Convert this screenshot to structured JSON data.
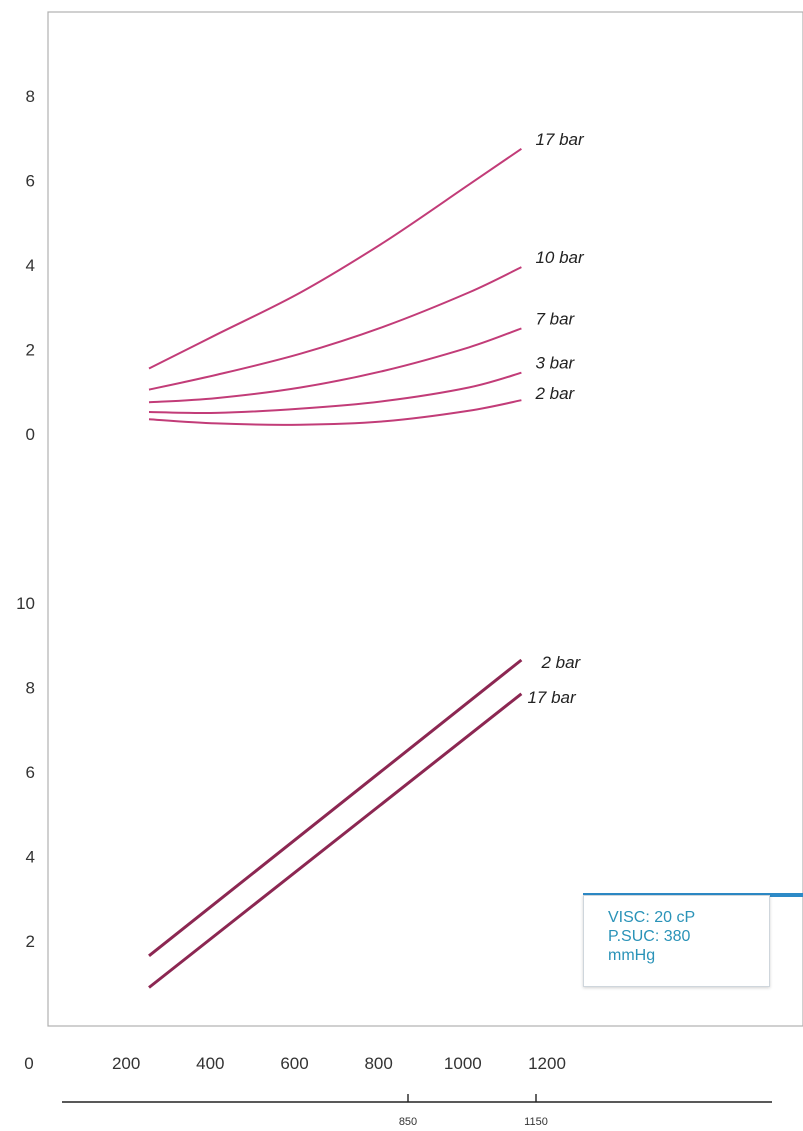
{
  "chart_data": [
    {
      "type": "line",
      "title": "",
      "xlabel": "",
      "ylabel": "",
      "xlim": [
        0,
        1350
      ],
      "ylim": [
        0,
        9
      ],
      "ytick_labels": [
        "0",
        "2",
        "4",
        "6",
        "8"
      ],
      "ytick_values": [
        0,
        2,
        4,
        6,
        8
      ],
      "grid": true,
      "series": [
        {
          "name": "17 bar",
          "color": "#c23c78",
          "x": [
            240,
            400,
            600,
            800,
            1000,
            1125
          ],
          "y": [
            1.55,
            2.35,
            3.35,
            4.55,
            5.9,
            6.75
          ]
        },
        {
          "name": "10 bar",
          "color": "#c23c78",
          "x": [
            240,
            400,
            600,
            800,
            1000,
            1125
          ],
          "y": [
            1.05,
            1.4,
            1.9,
            2.55,
            3.35,
            3.95
          ]
        },
        {
          "name": "7 bar",
          "color": "#c23c78",
          "x": [
            240,
            400,
            600,
            800,
            1000,
            1125
          ],
          "y": [
            0.75,
            0.85,
            1.1,
            1.5,
            2.05,
            2.5
          ]
        },
        {
          "name": "3 bar",
          "color": "#c23c78",
          "x": [
            240,
            400,
            600,
            800,
            1000,
            1125
          ],
          "y": [
            0.52,
            0.5,
            0.6,
            0.78,
            1.1,
            1.45
          ]
        },
        {
          "name": "2 bar",
          "color": "#c23c78",
          "x": [
            240,
            400,
            600,
            800,
            1000,
            1125
          ],
          "y": [
            0.35,
            0.25,
            0.22,
            0.3,
            0.55,
            0.8
          ]
        }
      ]
    },
    {
      "type": "line",
      "title": "",
      "xlabel": "",
      "ylabel": "",
      "xlim": [
        0,
        1350
      ],
      "ylim": [
        0,
        10
      ],
      "xtick_labels": [
        "0",
        "200",
        "400",
        "600",
        "800",
        "1000",
        "1200"
      ],
      "xtick_values": [
        0,
        200,
        400,
        600,
        800,
        1000,
        1200
      ],
      "ytick_labels": [
        "2",
        "4",
        "6",
        "8",
        "10"
      ],
      "ytick_values": [
        2,
        4,
        6,
        8,
        10
      ],
      "grid": true,
      "series": [
        {
          "name": "2 bar",
          "color": "#8c2752",
          "x": [
            240,
            1125
          ],
          "y": [
            1.65,
            8.65
          ]
        },
        {
          "name": "17 bar",
          "color": "#8c2752",
          "x": [
            240,
            1125
          ],
          "y": [
            0.9,
            7.85
          ]
        }
      ]
    }
  ],
  "secondary_axis": {
    "tick_labels": [
      "850",
      "1150"
    ],
    "tick_values": [
      850,
      1150
    ]
  },
  "info_box": {
    "line1": "VISC: 20 cP",
    "line2": "P.SUC: 380",
    "line3": "mmHg",
    "accent": "#2d8ac7",
    "text_color": "#2a93b8"
  },
  "colors": {
    "minor_grid": "#d8d8d8",
    "major_grid": "#9a9a9a",
    "background": "#ffffff"
  }
}
